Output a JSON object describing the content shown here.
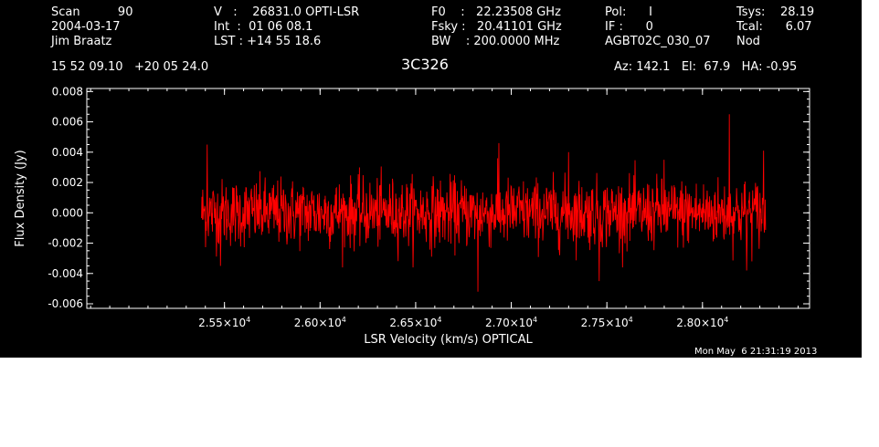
{
  "header": {
    "col1": [
      "Scan          90",
      "2004-03-17",
      "Jim Braatz"
    ],
    "col2": [
      "V   :    26831.0 OPTI-LSR",
      "Int  :  01 06 08.1",
      "LST : +14 55 18.6"
    ],
    "col3": [
      "F0    :   22.23508 GHz",
      "Fsky :   20.41101 GHz",
      "BW    : 200.0000 MHz"
    ],
    "col4": [
      "Pol:      I",
      "IF :      0",
      "AGBT02C_030_07"
    ],
    "col5": [
      "Tsys:    28.19",
      "Tcal:      6.07",
      "Nod"
    ],
    "coords": "15 52 09.10   +20 05 24.0",
    "source": "3C326",
    "azelha": "Az: 142.1   El:  67.9   HA: -0.95"
  },
  "timestamp": "Mon May  6 21:31:19 2013",
  "colors": {
    "background": "#000000",
    "axes": "#ffffff",
    "series": "#ff0000"
  },
  "chart_data": {
    "type": "line",
    "xlabel": "LSR Velocity (km/s) OPTICAL",
    "ylabel": "Flux Density (Jy)",
    "xlim": [
      24780,
      28560
    ],
    "ylim": [
      -0.0063,
      0.0082
    ],
    "x_ticks": [
      25500,
      26000,
      26500,
      27000,
      27500,
      28000
    ],
    "x_tick_labels": [
      {
        "mantissa": "2.55",
        "exponent": "4"
      },
      {
        "mantissa": "2.60",
        "exponent": "4"
      },
      {
        "mantissa": "2.65",
        "exponent": "4"
      },
      {
        "mantissa": "2.70",
        "exponent": "4"
      },
      {
        "mantissa": "2.75",
        "exponent": "4"
      },
      {
        "mantissa": "2.80",
        "exponent": "4"
      }
    ],
    "y_ticks": [
      -0.006,
      -0.004,
      -0.002,
      0.0,
      0.002,
      0.004,
      0.006,
      0.008
    ],
    "y_tick_labels": [
      "-0.006",
      "-0.004",
      "-0.002",
      "0.000",
      "0.002",
      "0.004",
      "0.006",
      "0.008"
    ],
    "series": [
      {
        "x_start": 25380,
        "x_end": 28330,
        "noise_rms": 0.0011,
        "y_offset": 0.0,
        "peaks": [
          {
            "x": 25410,
            "y": 0.0045
          },
          {
            "x": 26935,
            "y": 0.0046
          },
          {
            "x": 27300,
            "y": 0.004
          },
          {
            "x": 27800,
            "y": 0.0035
          },
          {
            "x": 28140,
            "y": 0.0065
          },
          {
            "x": 28320,
            "y": 0.0041
          },
          {
            "x": 26825,
            "y": -0.0052
          },
          {
            "x": 27460,
            "y": -0.0045
          },
          {
            "x": 28230,
            "y": -0.0038
          },
          {
            "x": 25480,
            "y": -0.0035
          }
        ]
      }
    ],
    "grid": false
  }
}
